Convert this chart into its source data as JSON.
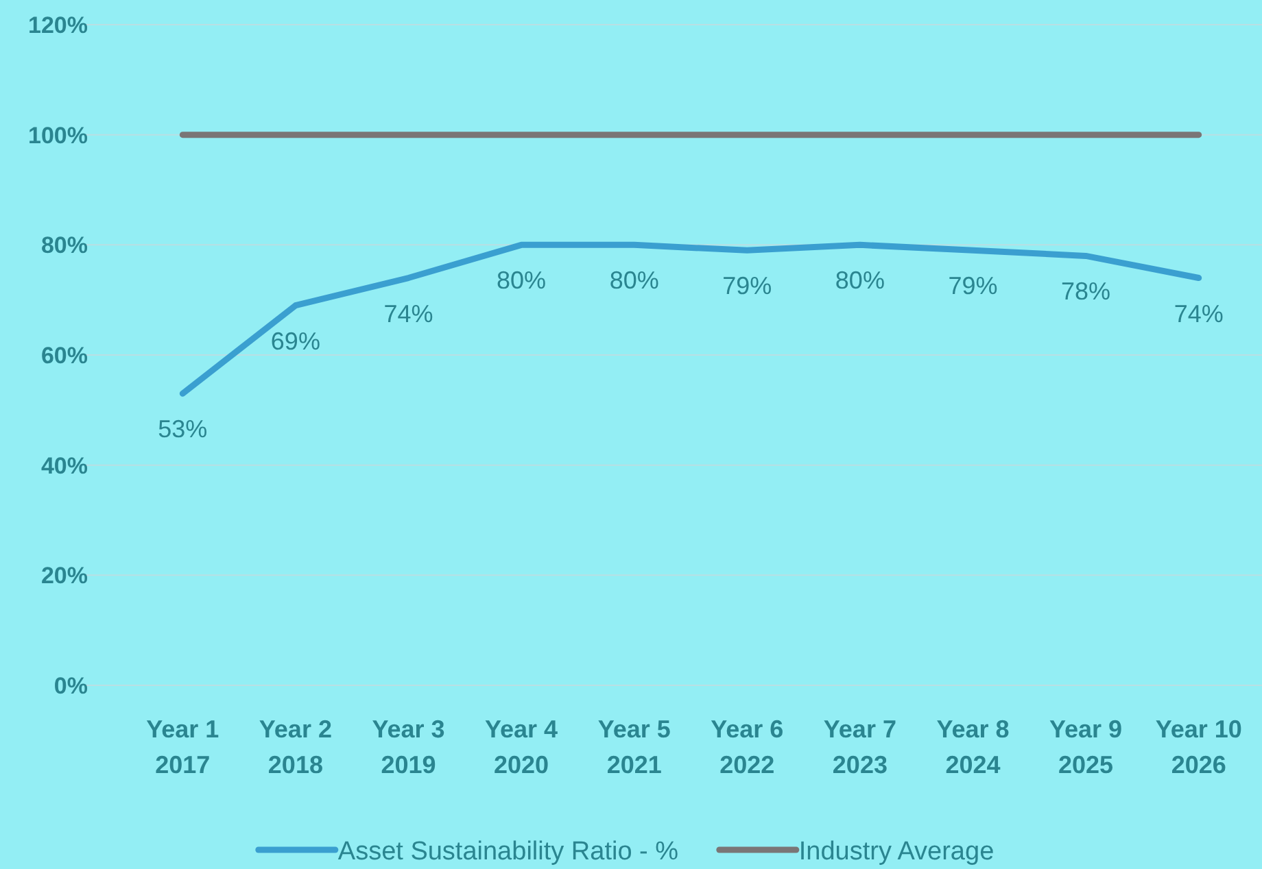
{
  "chart_data": {
    "type": "line",
    "categories": [
      "Year 1\n2017",
      "Year 2\n2018",
      "Year 3\n2019",
      "Year 4\n2020",
      "Year 5\n2021",
      "Year 6\n2022",
      "Year 7\n2023",
      "Year 8\n2024",
      "Year 9\n2025",
      "Year 10\n2026"
    ],
    "series": [
      {
        "name": "Asset Sustainability Ratio - %",
        "color": "#3a9fd0",
        "values": [
          53,
          69,
          74,
          80,
          80,
          79,
          80,
          79,
          78,
          74
        ],
        "value_labels": [
          "53%",
          "69%",
          "74%",
          "80%",
          "80%",
          "79%",
          "80%",
          "79%",
          "78%",
          "74%"
        ]
      },
      {
        "name": "Industry Average",
        "color": "#7a7676",
        "values": [
          100,
          100,
          100,
          100,
          100,
          100,
          100,
          100,
          100,
          100
        ]
      }
    ],
    "ylim": [
      0,
      120
    ],
    "yticks": [
      {
        "value": 0,
        "label": "0%"
      },
      {
        "value": 20,
        "label": "20%"
      },
      {
        "value": 40,
        "label": "40%"
      },
      {
        "value": 60,
        "label": "60%"
      },
      {
        "value": 80,
        "label": "80%"
      },
      {
        "value": 100,
        "label": "100%"
      },
      {
        "value": 120,
        "label": "120%"
      }
    ],
    "grid": "y",
    "legend": "bottom",
    "marker": "none",
    "line_style": "solid"
  }
}
